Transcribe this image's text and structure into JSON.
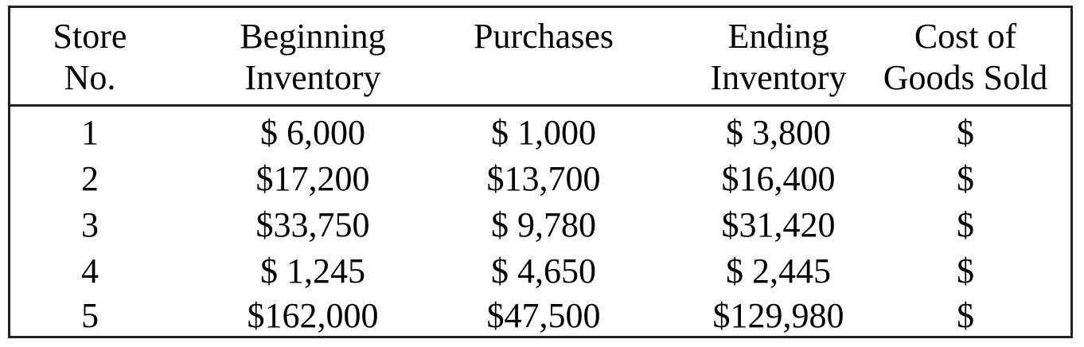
{
  "table": {
    "headers": [
      "Store\nNo.",
      "Beginning\nInventory",
      "Purchases",
      "Ending\nInventory",
      "Cost of\nGoods Sold"
    ],
    "rows": [
      [
        "1",
        "$ 6,000",
        "$ 1,000",
        "$ 3,800",
        "$"
      ],
      [
        "2",
        "$17,200",
        "$13,700",
        "$16,400",
        "$"
      ],
      [
        "3",
        "$33,750",
        "$ 9,780",
        "$31,420",
        "$"
      ],
      [
        "4",
        "$ 1,245",
        "$ 4,650",
        "$ 2,445",
        "$"
      ],
      [
        "5",
        "$162,000",
        "$47,500",
        "$129,980",
        "$"
      ]
    ]
  }
}
